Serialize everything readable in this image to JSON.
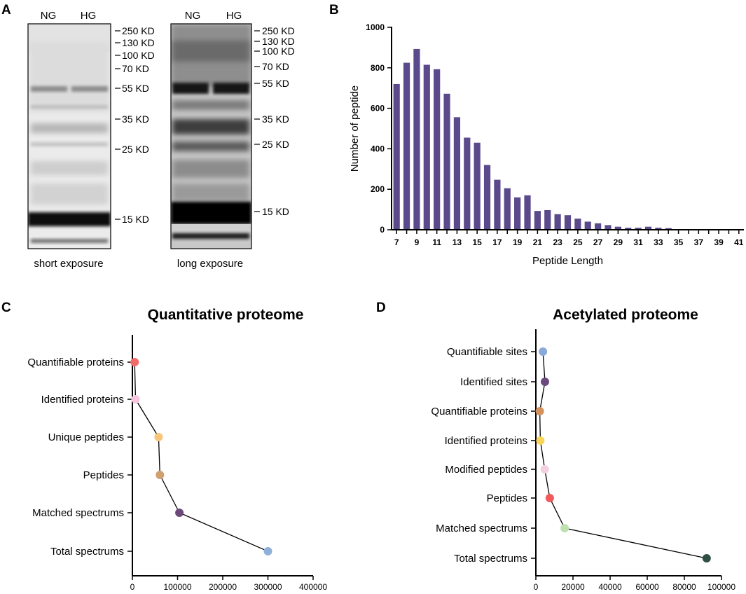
{
  "panels": {
    "A": {
      "label": "A",
      "blots": [
        {
          "lanes": [
            "NG",
            "HG"
          ],
          "caption": "short exposure",
          "markers": [
            "250 KD",
            "130 KD",
            "100 KD",
            "70 KD",
            "55 KD",
            "35 KD",
            "25 KD",
            "15 KD"
          ],
          "marker_kd": [
            250,
            130,
            100,
            70,
            55,
            35,
            25,
            15
          ]
        },
        {
          "lanes": [
            "NG",
            "HG"
          ],
          "caption": "long exposure",
          "markers": [
            "250 KD",
            "130 KD",
            "100 KD",
            "70 KD",
            "55 KD",
            "35 KD",
            "25 KD",
            "15 KD"
          ],
          "marker_kd": [
            250,
            130,
            100,
            70,
            55,
            35,
            25,
            15
          ]
        }
      ]
    },
    "B": {
      "label": "B"
    },
    "C": {
      "label": "C"
    },
    "D": {
      "label": "D"
    }
  },
  "chart_data": [
    {
      "panel": "B",
      "type": "bar",
      "title": "",
      "xlabel": "Peptide Length",
      "ylabel": "Number of peptide",
      "categories": [
        7,
        8,
        9,
        10,
        11,
        12,
        13,
        14,
        15,
        16,
        17,
        18,
        19,
        20,
        21,
        22,
        23,
        24,
        25,
        26,
        27,
        28,
        29,
        30,
        31,
        32,
        33,
        34,
        35,
        36,
        37,
        38,
        39,
        40,
        41
      ],
      "values": [
        720,
        825,
        893,
        815,
        793,
        672,
        556,
        455,
        430,
        320,
        247,
        205,
        160,
        170,
        93,
        97,
        77,
        72,
        55,
        40,
        32,
        23,
        15,
        10,
        10,
        15,
        10,
        8,
        0,
        0,
        0,
        0,
        0,
        0,
        0
      ],
      "xtick_labels": [
        "7",
        "9",
        "11",
        "13",
        "15",
        "17",
        "19",
        "21",
        "23",
        "25",
        "27",
        "29",
        "31",
        "33",
        "35",
        "37",
        "39",
        "41"
      ],
      "ylim": [
        0,
        1000
      ],
      "yticks": [
        0,
        200,
        400,
        600,
        800,
        1000
      ],
      "color": "#5b4a8b"
    },
    {
      "panel": "C",
      "type": "scatter",
      "title": "Quantitative proteome",
      "categories": [
        "Quantifiable proteins",
        "Identified proteins",
        "Unique peptides",
        "Peptides",
        "Matched spectrums",
        "Total spectrums"
      ],
      "values": [
        5000,
        7000,
        58000,
        61000,
        104000,
        300000
      ],
      "colors": [
        "#f26b6b",
        "#f5c6dc",
        "#f9c57a",
        "#d0a070",
        "#6b4a7a",
        "#8fb0d8"
      ],
      "xlim": [
        0,
        400000
      ],
      "xticks": [
        0,
        100000,
        200000,
        300000,
        400000
      ],
      "xtick_labels": [
        "0",
        "100000",
        "200000",
        "300000",
        "400000"
      ],
      "connected": true
    },
    {
      "panel": "D",
      "type": "scatter",
      "title": "Acetylated proteome",
      "categories": [
        "Quantifiable sites",
        "Identified sites",
        "Quantifiable proteins",
        "Identified proteins",
        "Modified peptides",
        "Peptides",
        "Matched spectrums",
        "Total spectrums"
      ],
      "values": [
        3800,
        4900,
        2100,
        2400,
        4800,
        7500,
        15500,
        92000
      ],
      "colors": [
        "#8aa8d8",
        "#6b4a80",
        "#d4915c",
        "#f7d45a",
        "#f4cfe0",
        "#ef5a5a",
        "#bfe0b0",
        "#2f4f45"
      ],
      "xlim": [
        0,
        100000
      ],
      "xticks": [
        0,
        20000,
        40000,
        60000,
        80000,
        100000
      ],
      "xtick_labels": [
        "0",
        "20000",
        "40000",
        "60000",
        "80000",
        "100000"
      ],
      "connected": true
    }
  ]
}
